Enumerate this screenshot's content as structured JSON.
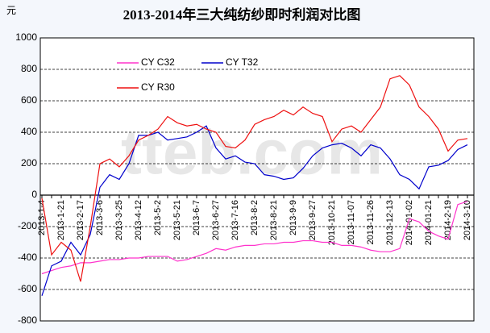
{
  "chart_data": {
    "type": "line",
    "title": "2013-2014年三大纯纺纱即时利润对比图",
    "ylabel": "元",
    "watermark": "tteb.com",
    "categories": [
      "2013-1-4",
      null,
      "2013-1-21",
      null,
      "2013-2-17",
      null,
      "2013-3-6",
      null,
      "2013-3-25",
      null,
      "2013-4-12",
      null,
      "2013-5-2",
      null,
      "2013-5-21",
      null,
      "2013-6-7",
      null,
      "2013-6-27",
      null,
      "2013-7-16",
      null,
      "2013-8-2",
      null,
      "2013-8-21",
      null,
      "2013-9-9",
      null,
      "2013-9-27",
      null,
      "2013-10-21",
      null,
      "2013-11-07",
      null,
      "2013-11-26",
      null,
      "2013-12-13",
      null,
      "2014-01-02",
      null,
      "2014-01-21",
      null,
      "2014-2-19",
      null,
      "2014-3-10"
    ],
    "series": [
      {
        "name": "CY C32",
        "color": "#ff33cc",
        "values": [
          -500,
          -480,
          -460,
          -450,
          -430,
          -430,
          -420,
          -410,
          -410,
          -400,
          -400,
          -390,
          -390,
          -390,
          -420,
          -410,
          -390,
          -370,
          -340,
          -350,
          -330,
          -320,
          -320,
          -310,
          -310,
          -300,
          -300,
          -290,
          -290,
          -300,
          -300,
          -320,
          -320,
          -330,
          -350,
          -360,
          -360,
          -340,
          -150,
          -170,
          -230,
          -260,
          -280,
          -60,
          -40
        ]
      },
      {
        "name": "CY T32",
        "color": "#0000cc",
        "values": [
          -640,
          -450,
          -420,
          -300,
          -380,
          -250,
          50,
          130,
          100,
          200,
          380,
          380,
          400,
          350,
          360,
          370,
          400,
          440,
          300,
          230,
          250,
          210,
          200,
          130,
          120,
          100,
          110,
          170,
          250,
          300,
          320,
          330,
          300,
          250,
          320,
          300,
          230,
          130,
          100,
          40,
          180,
          190,
          220,
          290,
          320
        ]
      },
      {
        "name": "CY R30",
        "color": "#ee1111",
        "values": [
          -20,
          -380,
          -300,
          -350,
          -550,
          -200,
          200,
          230,
          180,
          250,
          350,
          380,
          420,
          500,
          460,
          440,
          450,
          420,
          400,
          310,
          300,
          350,
          450,
          480,
          500,
          540,
          510,
          560,
          520,
          500,
          340,
          420,
          440,
          400,
          480,
          560,
          740,
          760,
          700,
          560,
          500,
          420,
          280,
          350,
          360
        ]
      }
    ],
    "ylim": [
      -800,
      1000
    ],
    "yticks": [
      -800,
      -600,
      -400,
      -200,
      0,
      200,
      400,
      600,
      800,
      1000
    ],
    "grid": true
  }
}
